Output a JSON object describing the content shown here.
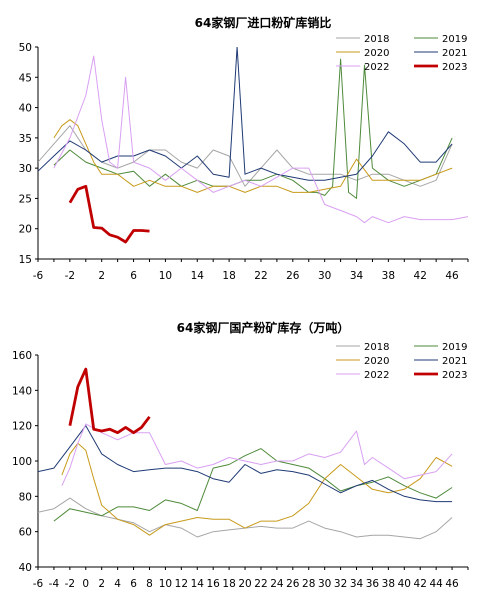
{
  "colors": {
    "2018": "#a6a6a6",
    "2019": "#4e8a3a",
    "2020": "#c89a1c",
    "2021": "#1f3a75",
    "2022": "#d9a0f2",
    "2023": "#c00000"
  },
  "chart_data": [
    {
      "type": "line",
      "title": "64家钢厂进口粉矿库销比",
      "xlabel": "",
      "ylabel": "",
      "xlim": [
        -6,
        48
      ],
      "ylim": [
        15,
        50
      ],
      "x_ticks": [
        "-6",
        "-2",
        "2",
        "6",
        "10",
        "14",
        "18",
        "22",
        "26",
        "30",
        "34",
        "38",
        "42",
        "46"
      ],
      "y_ticks": [
        "15",
        "20",
        "25",
        "30",
        "35",
        "40",
        "45",
        "50"
      ],
      "legend_position": "top-right",
      "series": [
        {
          "name": "2018",
          "key": "2018",
          "x": [
            -6,
            -4,
            -2,
            0,
            2,
            4,
            6,
            8,
            10,
            12,
            14,
            16,
            18,
            20,
            22,
            24,
            26,
            28,
            30,
            32,
            34,
            36,
            38,
            40,
            42,
            44,
            46
          ],
          "values": [
            31,
            34,
            37,
            33,
            31,
            30,
            31,
            33,
            33,
            31,
            30,
            33,
            32,
            27,
            30,
            33,
            30,
            29,
            29,
            29,
            28,
            29,
            29,
            28,
            27,
            28,
            34
          ]
        },
        {
          "name": "2019",
          "key": "2019",
          "x": [
            -4,
            -2,
            0,
            2,
            4,
            6,
            8,
            10,
            12,
            14,
            16,
            18,
            20,
            22,
            24,
            26,
            28,
            29,
            30,
            31,
            32,
            33,
            34,
            35,
            36,
            38,
            40,
            42,
            44,
            46
          ],
          "values": [
            30.5,
            33,
            31,
            30,
            29,
            29.5,
            27,
            29,
            27,
            28,
            27,
            27,
            28,
            28,
            29,
            28,
            26,
            26,
            25.5,
            27,
            48,
            26,
            25,
            47,
            30,
            28,
            27,
            28,
            29,
            35
          ]
        },
        {
          "name": "2020",
          "key": "2020",
          "x": [
            -4,
            -3,
            -2,
            -1,
            0,
            1,
            2,
            4,
            6,
            8,
            10,
            12,
            14,
            16,
            18,
            20,
            22,
            24,
            26,
            28,
            30,
            32,
            34,
            36,
            38,
            40,
            42,
            44,
            46
          ],
          "values": [
            35,
            37,
            38,
            37,
            34,
            31,
            29,
            29,
            27,
            28,
            27,
            27,
            26,
            27,
            27,
            26,
            27,
            27,
            26,
            26,
            26.5,
            27,
            31.5,
            28,
            28,
            28,
            28,
            29,
            30
          ]
        },
        {
          "name": "2021",
          "key": "2021",
          "x": [
            -6,
            -4,
            -2,
            0,
            2,
            4,
            6,
            8,
            10,
            12,
            14,
            16,
            18,
            19,
            20,
            22,
            24,
            26,
            28,
            30,
            32,
            34,
            36,
            38,
            40,
            42,
            44,
            46
          ],
          "values": [
            29.5,
            32,
            34.5,
            33,
            31,
            32,
            32,
            33,
            32,
            30,
            32,
            29,
            28.5,
            50,
            29,
            30,
            29,
            28.5,
            28,
            28,
            28.5,
            29,
            32,
            36,
            34,
            31,
            31,
            34
          ]
        },
        {
          "name": "2022",
          "key": "2022",
          "x": [
            -4,
            -2,
            0,
            1,
            2,
            3,
            4,
            5,
            6,
            8,
            10,
            12,
            14,
            16,
            18,
            20,
            22,
            24,
            26,
            28,
            30,
            32,
            34,
            35,
            36,
            38,
            40,
            42,
            44,
            46,
            48
          ],
          "values": [
            30,
            35,
            42,
            48.5,
            38,
            31,
            30,
            45,
            31,
            30,
            28,
            30,
            28,
            26,
            27,
            28,
            27,
            28.5,
            30,
            30,
            24,
            23,
            22,
            21,
            22,
            21,
            22,
            21.5,
            21.5,
            21.5,
            22
          ]
        },
        {
          "name": "2023",
          "key": "2023",
          "x": [
            -2,
            -1,
            0,
            1,
            2,
            3,
            4,
            5,
            6,
            7,
            8
          ],
          "values": [
            24.3,
            26.5,
            27,
            20.2,
            20.1,
            19,
            18.6,
            17.8,
            19.7,
            19.7,
            19.6
          ]
        }
      ]
    },
    {
      "type": "line",
      "title": "64家钢厂国产粉矿库存（万吨）",
      "xlabel": "",
      "ylabel": "",
      "xlim": [
        -6,
        48
      ],
      "ylim": [
        40,
        160
      ],
      "x_ticks": [
        "-6",
        "-4",
        "-2",
        "0",
        "2",
        "4",
        "6",
        "8",
        "10",
        "12",
        "14",
        "16",
        "18",
        "20",
        "22",
        "24",
        "26",
        "28",
        "30",
        "32",
        "34",
        "36",
        "38",
        "40",
        "42",
        "44",
        "46"
      ],
      "y_ticks": [
        "40",
        "60",
        "80",
        "100",
        "120",
        "140",
        "160"
      ],
      "legend_position": "top-right",
      "series": [
        {
          "name": "2018",
          "key": "2018",
          "x": [
            -6,
            -4,
            -2,
            0,
            2,
            4,
            6,
            8,
            10,
            12,
            14,
            16,
            18,
            20,
            22,
            24,
            26,
            28,
            30,
            32,
            34,
            36,
            38,
            40,
            42,
            44,
            46
          ],
          "values": [
            71,
            73,
            79,
            73,
            69,
            67,
            65,
            60,
            64,
            62,
            57,
            60,
            61,
            62,
            63,
            62,
            62,
            66,
            62,
            60,
            57,
            58,
            58,
            57,
            56,
            60,
            68
          ]
        },
        {
          "name": "2019",
          "key": "2019",
          "x": [
            -4,
            -2,
            0,
            2,
            4,
            6,
            8,
            10,
            12,
            14,
            16,
            18,
            20,
            22,
            24,
            26,
            28,
            30,
            32,
            34,
            36,
            38,
            40,
            42,
            44,
            46
          ],
          "values": [
            66,
            73,
            71,
            69,
            74,
            74,
            72,
            78,
            76,
            72,
            96,
            98,
            103,
            107,
            100,
            98,
            96,
            90,
            83,
            86,
            88,
            91,
            86,
            82,
            79,
            85
          ]
        },
        {
          "name": "2020",
          "key": "2020",
          "x": [
            -3,
            -2,
            -1,
            0,
            1,
            2,
            4,
            6,
            8,
            10,
            12,
            14,
            16,
            18,
            20,
            22,
            24,
            26,
            28,
            30,
            32,
            34,
            36,
            38,
            40,
            42,
            44,
            46
          ],
          "values": [
            92,
            104,
            110,
            106,
            90,
            75,
            67,
            64,
            58,
            64,
            66,
            68,
            67,
            67,
            62,
            66,
            66,
            69,
            76,
            90,
            98,
            91,
            84,
            82,
            84,
            90,
            102,
            97
          ]
        },
        {
          "name": "2021",
          "key": "2021",
          "x": [
            -6,
            -4,
            -2,
            0,
            2,
            4,
            6,
            8,
            10,
            12,
            14,
            16,
            18,
            20,
            22,
            24,
            26,
            28,
            30,
            32,
            34,
            36,
            38,
            40,
            42,
            44,
            46
          ],
          "values": [
            94,
            96,
            108,
            120,
            104,
            98,
            94,
            95,
            96,
            96,
            94,
            90,
            88,
            98,
            93,
            95,
            94,
            92,
            87,
            82,
            86,
            89,
            84,
            80,
            78,
            77,
            77
          ]
        },
        {
          "name": "2022",
          "key": "2022",
          "x": [
            -3,
            -2,
            -1,
            0,
            2,
            4,
            6,
            8,
            10,
            12,
            14,
            16,
            18,
            20,
            22,
            24,
            26,
            28,
            30,
            32,
            34,
            35,
            36,
            38,
            40,
            42,
            44,
            46
          ],
          "values": [
            86,
            96,
            110,
            121,
            116,
            112,
            116,
            116,
            98,
            100,
            96,
            98,
            102,
            100,
            98,
            100,
            100,
            104,
            102,
            105,
            117,
            98,
            102,
            96,
            90,
            92,
            94,
            104
          ]
        },
        {
          "name": "2023",
          "key": "2023",
          "x": [
            -2,
            -1,
            0,
            1,
            2,
            3,
            4,
            5,
            6,
            7,
            8
          ],
          "values": [
            120,
            142,
            152,
            118,
            117,
            118,
            116,
            119,
            116,
            119,
            125
          ]
        }
      ]
    }
  ]
}
